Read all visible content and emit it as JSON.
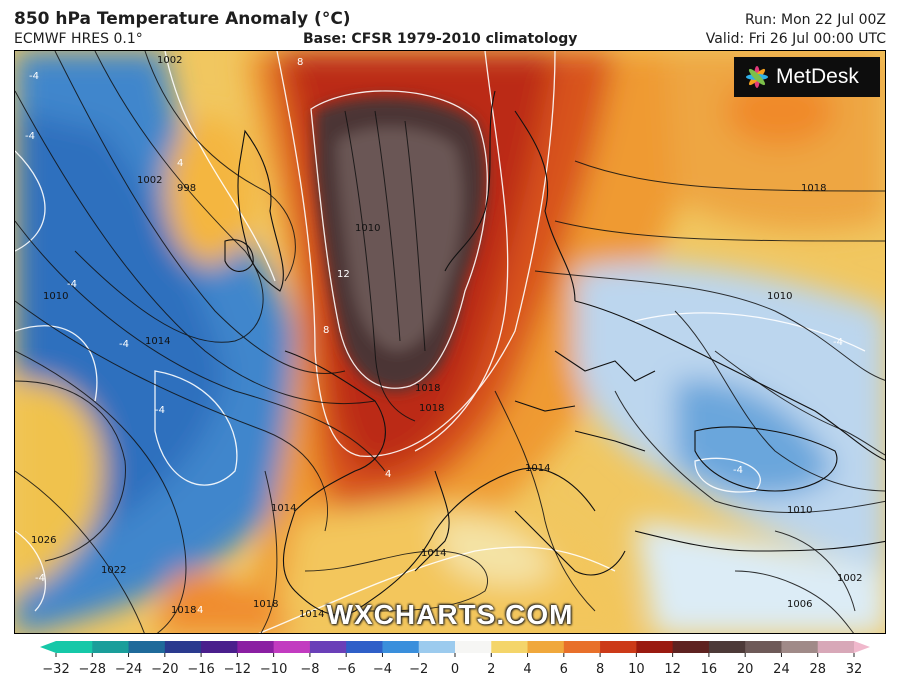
{
  "header": {
    "title": "850 hPa Temperature Anomaly (°C)",
    "model": "ECMWF HRES 0.1°",
    "base": "Base: CFSR 1979-2010 climatology",
    "run": "Run: Mon 22 Jul 00Z",
    "valid": "Valid: Fri 26 Jul 00:00 UTC"
  },
  "logo": {
    "text": "MetDesk"
  },
  "watermark": "WXCHARTS.COM",
  "isobar_labels": [
    "1002",
    "998",
    "1002",
    "1010",
    "1010",
    "1014",
    "1018",
    "1026",
    "1022",
    "1018",
    "1018",
    "1014",
    "1014",
    "1014",
    "1018",
    "1014",
    "1018",
    "1010",
    "1010",
    "1006",
    "1002"
  ],
  "anomaly_labels": [
    "-4",
    "-4",
    "4",
    "-4",
    "-4",
    "-4",
    "8",
    "12",
    "8",
    "4",
    "-4",
    "-4",
    "4",
    "-4"
  ],
  "colorbar": {
    "ticks": [
      "−32",
      "−28",
      "−24",
      "−20",
      "−16",
      "−12",
      "−10",
      "−8",
      "−6",
      "−4",
      "−2",
      "0",
      "2",
      "4",
      "6",
      "8",
      "10",
      "12",
      "16",
      "20",
      "24",
      "28",
      "32"
    ],
    "colors": [
      "#16c8a8",
      "#1a9e9a",
      "#1f6a9a",
      "#2a3a8e",
      "#4a1f8c",
      "#8a1fa2",
      "#c23bc0",
      "#6a3fb8",
      "#2f5fc8",
      "#3a8fdc",
      "#9ccbee",
      "#f6f6f4",
      "#f4d56a",
      "#f0a83c",
      "#e8702a",
      "#cc3a18",
      "#9a1a10",
      "#5e2220",
      "#4d3a38",
      "#6e5a58",
      "#a08a88",
      "#d8a8b8",
      "#f0b8cc"
    ]
  },
  "colors": {
    "ocean_cool": "#3f86cc",
    "warm_orange": "#ef9a32",
    "hot_red": "#bb2c14",
    "extreme_brown": "#4b3634"
  }
}
